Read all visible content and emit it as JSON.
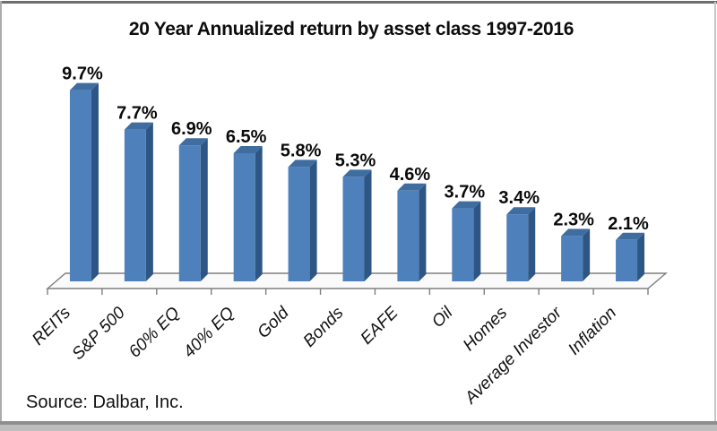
{
  "header": {
    "title": "20 Year Annualized return by asset class 1997-2016"
  },
  "footer": {
    "source": "Source: Dalbar, Inc."
  },
  "chart_data": {
    "type": "bar",
    "style": "3d-column",
    "title": "20 Year Annualized return by asset class 1997-2016",
    "categories": [
      "REITs",
      "S&P 500",
      "60% EQ",
      "40% EQ",
      "Gold",
      "Bonds",
      "EAFE",
      "Oil",
      "Homes",
      "Average Investor",
      "Inflation"
    ],
    "values": [
      9.7,
      7.7,
      6.9,
      6.5,
      5.8,
      5.3,
      4.6,
      3.7,
      3.4,
      2.3,
      2.1
    ],
    "labels": [
      "9.7%",
      "7.7%",
      "6.9%",
      "6.5%",
      "5.8%",
      "5.3%",
      "4.6%",
      "3.7%",
      "3.4%",
      "2.3%",
      "2.1%"
    ],
    "xlabel": "",
    "ylabel": "",
    "ylim": [
      0,
      10
    ],
    "grid": false,
    "legend": "none",
    "source": "Source: Dalbar, Inc.",
    "colors": {
      "bar_front": "#4e80bc",
      "bar_side": "#2e5685",
      "bar_top": "#406d9f",
      "floor_fill": "#fafafa",
      "axis_color": "#7f7f7f",
      "label_color": "#0a0a0a",
      "category_color": "#111111"
    }
  }
}
